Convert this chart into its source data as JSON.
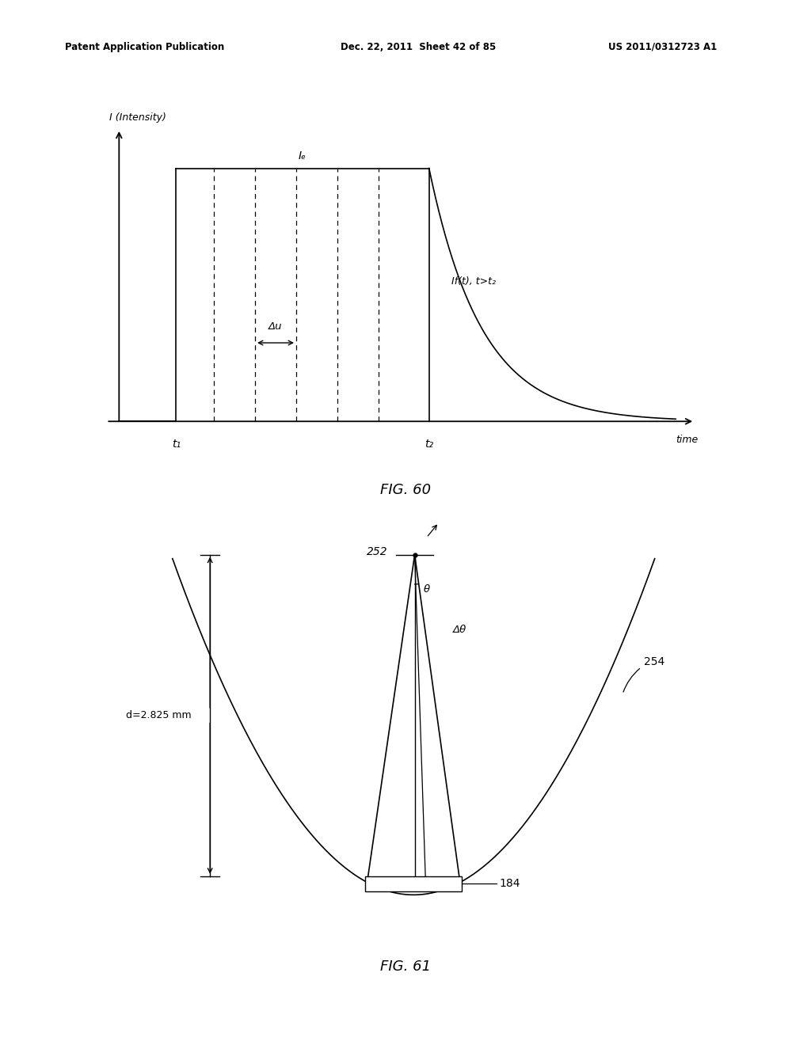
{
  "bg_color": "#ffffff",
  "line_color": "#000000",
  "fig_width": 10.24,
  "fig_height": 13.2,
  "header_left": "Patent Application Publication",
  "header_mid": "Dec. 22, 2011  Sheet 42 of 85",
  "header_right": "US 2011/0312723 A1",
  "fig60_caption": "FIG. 60",
  "fig61_caption": "FIG. 61",
  "fig60_ylabel": "I (Intensity)",
  "fig60_xlabel": "time",
  "fig60_t1": "t₁",
  "fig60_t2": "t₂",
  "fig60_Ie": "Iₑ",
  "fig60_If_label": "If(t), t>t₂",
  "fig60_delta_u": "Δu",
  "fig61_252": "252",
  "fig61_254": "254",
  "fig61_184": "184",
  "fig61_d": "d=2.825 mm",
  "fig61_theta": "θ",
  "fig61_delta_theta": "Δθ"
}
